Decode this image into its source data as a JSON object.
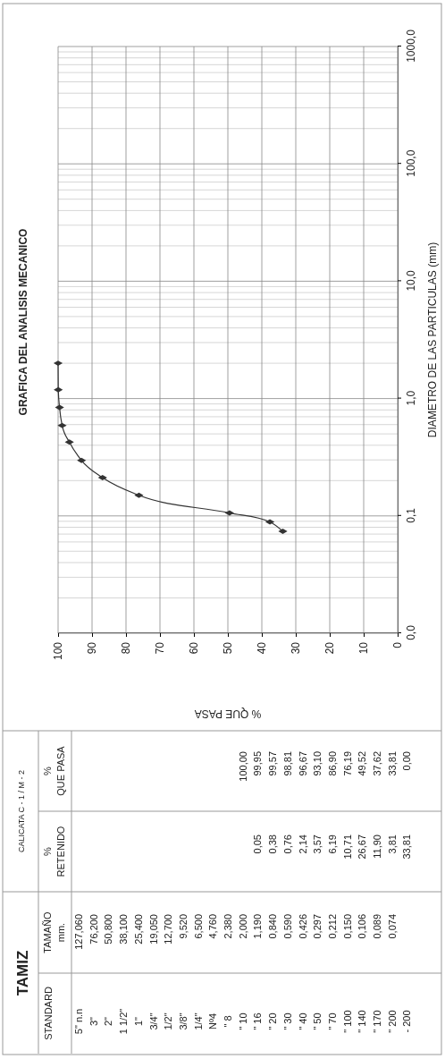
{
  "chart_data": [
    {
      "type": "line",
      "title": "GRAFICA DEL ANALISIS MECANICO",
      "ylabel": "DIAMETRO DE LAS PARTICULAS  (mm)",
      "xlabel": "% QUE PASA",
      "log": "y",
      "x": [
        100,
        99.95,
        99.57,
        98.81,
        96.67,
        93.1,
        86.9,
        76.19,
        49.52,
        37.62,
        33.81
      ],
      "series": [
        {
          "color": "#333333",
          "values": [
            2.0,
            1.19,
            0.84,
            0.59,
            0.426,
            0.297,
            0.212,
            0.15,
            0.106,
            0.089,
            0.074
          ]
        }
      ],
      "ylim": [
        0.01,
        1000
      ],
      "yticks": [
        {
          "value": 0.01,
          "label": "0,0"
        },
        {
          "value": 0.1,
          "label": "0,1"
        },
        {
          "value": 1,
          "label": "1,0"
        },
        {
          "value": 10,
          "label": "10,0"
        },
        {
          "value": 100,
          "label": "100,0"
        },
        {
          "value": 1000,
          "label": "1000,0"
        }
      ],
      "xlim": [
        100,
        0
      ],
      "xticks": [
        100,
        90,
        80,
        70,
        60,
        50,
        40,
        30,
        20,
        10,
        0
      ],
      "grid": true,
      "marker": "diamond"
    },
    {
      "type": "other",
      "title": "TAMIZ",
      "subtitle": "CALICATA C - 1 / M - 2",
      "xlabel": "STANDARD",
      "categories": [
        "5\" n.n",
        "3\"",
        "2\"",
        "1 1/2\"",
        "1\"",
        "3/4\"",
        "1/2\"",
        "3/8\"",
        "1/4\"",
        "Nº4",
        "\" 8",
        "\" 10",
        "\" 16",
        "\" 20",
        "\" 30",
        "\" 40",
        "\" 50",
        "\" 70",
        "\" 100",
        "\" 140",
        "\" 170",
        "\" 200",
        "- 200"
      ],
      "series": [
        {
          "name": "TAMAÑO\nmm.",
          "values": [
            127.06,
            76.2,
            50.8,
            38.1,
            25.4,
            19.05,
            12.7,
            9.52,
            6.5,
            4.76,
            2.38,
            2.0,
            1.19,
            0.84,
            0.59,
            0.426,
            0.297,
            0.212,
            0.15,
            0.106,
            0.089,
            0.074,
            null
          ],
          "value_labels": [
            "127,060",
            "76,200",
            "50,800",
            "38,100",
            "25,400",
            "19,050",
            "12,700",
            "9,520",
            "6,500",
            "4,760",
            "2,380",
            "2,000",
            "1,190",
            "0,840",
            "0,590",
            "0,426",
            "0,297",
            "0,212",
            "0,150",
            "0,106",
            "0,089",
            "0,074",
            null
          ]
        },
        {
          "name": "%\nRETENIDO",
          "values": [
            null,
            null,
            null,
            null,
            null,
            null,
            null,
            null,
            null,
            null,
            null,
            null,
            0.05,
            0.38,
            0.76,
            2.14,
            3.57,
            6.19,
            10.71,
            26.67,
            11.9,
            3.81,
            33.81
          ],
          "value_labels": [
            null,
            null,
            null,
            null,
            null,
            null,
            null,
            null,
            null,
            null,
            null,
            null,
            "0,05",
            "0,38",
            "0,76",
            "2,14",
            "3,57",
            "6,19",
            "10,71",
            "26,67",
            "11,90",
            "3,81",
            "33,81"
          ]
        },
        {
          "name": "%\nQUE PASA",
          "values": [
            null,
            null,
            null,
            null,
            null,
            null,
            null,
            null,
            null,
            null,
            null,
            100,
            99.95,
            99.57,
            98.81,
            96.67,
            93.1,
            86.9,
            76.19,
            49.52,
            37.62,
            33.81,
            0
          ],
          "value_labels": [
            null,
            null,
            null,
            null,
            null,
            null,
            null,
            null,
            null,
            null,
            null,
            "100,00",
            "99,95",
            "99,57",
            "98,81",
            "96,67",
            "93,10",
            "86,90",
            "76,19",
            "49,52",
            "37,62",
            "33,81",
            "0,00"
          ]
        }
      ]
    }
  ]
}
